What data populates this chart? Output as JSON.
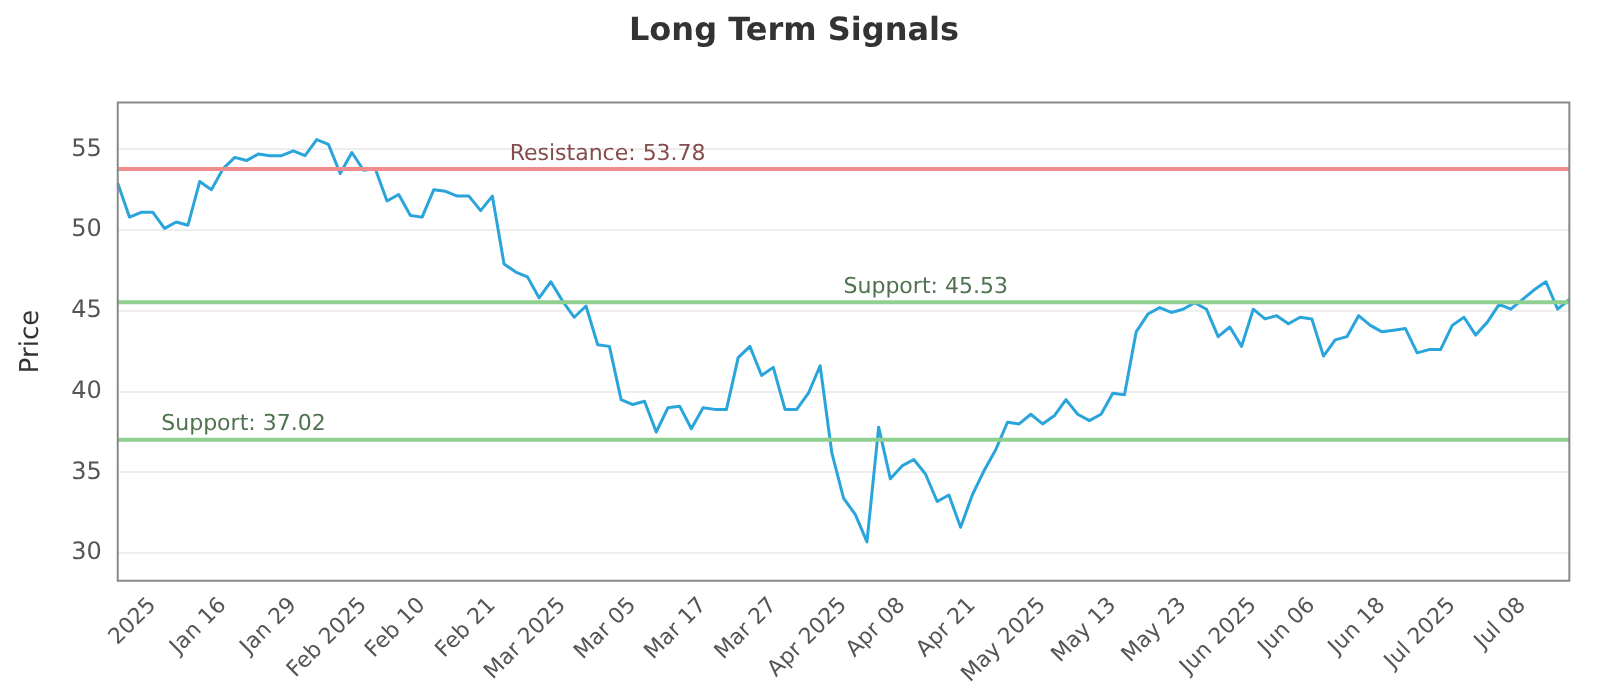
{
  "chart_data": {
    "type": "line",
    "title": "Long Term Signals",
    "ylabel": "Price",
    "categories": [
      null,
      null,
      null,
      "2025",
      null,
      null,
      null,
      null,
      null,
      "Jan 16",
      null,
      null,
      null,
      null,
      null,
      "Jan 29",
      null,
      null,
      null,
      null,
      null,
      "Feb 2025",
      null,
      null,
      null,
      null,
      "Feb 10",
      null,
      null,
      null,
      null,
      null,
      "Feb 21",
      null,
      null,
      null,
      null,
      null,
      "Mar 2025",
      null,
      null,
      null,
      null,
      null,
      "Mar 05",
      null,
      null,
      null,
      null,
      null,
      "Mar 17",
      null,
      null,
      null,
      null,
      null,
      "Mar 27",
      null,
      null,
      null,
      null,
      null,
      "Apr 2025",
      null,
      null,
      null,
      null,
      "Apr 08",
      null,
      null,
      null,
      null,
      null,
      "Apr 21",
      null,
      null,
      null,
      null,
      null,
      "May 2025",
      null,
      null,
      null,
      null,
      null,
      "May 13",
      null,
      null,
      null,
      null,
      null,
      "May 23",
      null,
      null,
      null,
      null,
      null,
      "Jun 2025",
      null,
      null,
      null,
      null,
      "Jun 06",
      null,
      null,
      null,
      null,
      null,
      "Jun 18",
      null,
      null,
      null,
      null,
      null,
      "Jul 2025",
      null,
      null,
      null,
      null,
      null,
      "Jul 08",
      null,
      null,
      null,
      null
    ],
    "series": [
      {
        "color": "#2aa5dc",
        "values": [
          52.9,
          50.8,
          51.1,
          51.1,
          50.1,
          50.5,
          50.3,
          53.0,
          52.5,
          53.8,
          54.5,
          54.3,
          54.7,
          54.6,
          54.6,
          54.9,
          54.6,
          55.6,
          55.3,
          53.5,
          54.8,
          53.7,
          53.8,
          51.8,
          52.2,
          50.9,
          50.8,
          52.5,
          52.4,
          52.1,
          52.1,
          51.2,
          52.1,
          47.9,
          47.4,
          47.1,
          45.8,
          46.8,
          45.6,
          44.6,
          45.3,
          42.9,
          42.8,
          39.5,
          39.2,
          39.4,
          37.5,
          39.0,
          39.1,
          37.7,
          39.0,
          38.9,
          38.9,
          42.1,
          42.8,
          41.0,
          41.5,
          38.9,
          38.9,
          39.9,
          41.6,
          36.2,
          33.4,
          32.4,
          30.7,
          37.8,
          34.6,
          35.4,
          35.8,
          34.9,
          33.2,
          33.6,
          31.6,
          33.6,
          35.1,
          36.4,
          38.1,
          38.0,
          38.6,
          38.0,
          38.5,
          39.5,
          38.6,
          38.2,
          38.6,
          39.9,
          39.8,
          43.7,
          44.8,
          45.2,
          44.9,
          45.1,
          45.5,
          45.1,
          43.4,
          44.0,
          42.8,
          45.1,
          44.5,
          44.7,
          44.2,
          44.6,
          44.5,
          42.2,
          43.2,
          43.4,
          44.7,
          44.1,
          43.7,
          43.8,
          43.9,
          42.4,
          42.6,
          42.6,
          44.1,
          44.6,
          43.5,
          44.3,
          45.4,
          45.1,
          45.7,
          46.3,
          46.8,
          45.1,
          45.7
        ]
      }
    ],
    "ylim": [
      28.3,
      57.9
    ],
    "yticks": [
      30,
      35,
      40,
      45,
      50,
      55
    ],
    "ref_lines": [
      {
        "axis": "y",
        "value": 53.78,
        "label": "Resistance: 53.78",
        "color": "#f28b8b"
      },
      {
        "axis": "y",
        "value": 45.53,
        "label": "Support: 45.53",
        "color": "#8fcf8f"
      },
      {
        "axis": "y",
        "value": 37.02,
        "label": "Support: 37.02",
        "color": "#8fcf8f"
      }
    ],
    "grid": "y",
    "legend": false,
    "marker": "none",
    "line_style": "solid"
  }
}
